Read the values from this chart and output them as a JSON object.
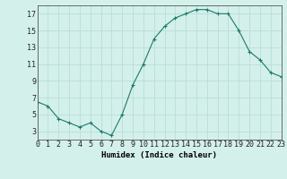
{
  "x": [
    0,
    1,
    2,
    3,
    4,
    5,
    6,
    7,
    8,
    9,
    10,
    11,
    12,
    13,
    14,
    15,
    16,
    17,
    18,
    19,
    20,
    21,
    22,
    23
  ],
  "y": [
    6.5,
    6.0,
    4.5,
    4.0,
    3.5,
    4.0,
    3.0,
    2.5,
    5.0,
    8.5,
    11.0,
    14.0,
    15.5,
    16.5,
    17.0,
    17.5,
    17.5,
    17.0,
    17.0,
    15.0,
    12.5,
    11.5,
    10.0,
    9.5
  ],
  "line_color": "#1a7a6a",
  "marker": "D",
  "marker_size": 2.0,
  "background_color": "#d4f0eb",
  "grid_color": "#b8ddd8",
  "xlabel": "Humidex (Indice chaleur)",
  "xlim": [
    0,
    23
  ],
  "ylim": [
    2,
    18
  ],
  "yticks": [
    3,
    5,
    7,
    9,
    11,
    13,
    15,
    17
  ],
  "xticks": [
    0,
    1,
    2,
    3,
    4,
    5,
    6,
    7,
    8,
    9,
    10,
    11,
    12,
    13,
    14,
    15,
    16,
    17,
    18,
    19,
    20,
    21,
    22,
    23
  ],
  "label_fontsize": 6.5,
  "tick_fontsize": 6.0
}
